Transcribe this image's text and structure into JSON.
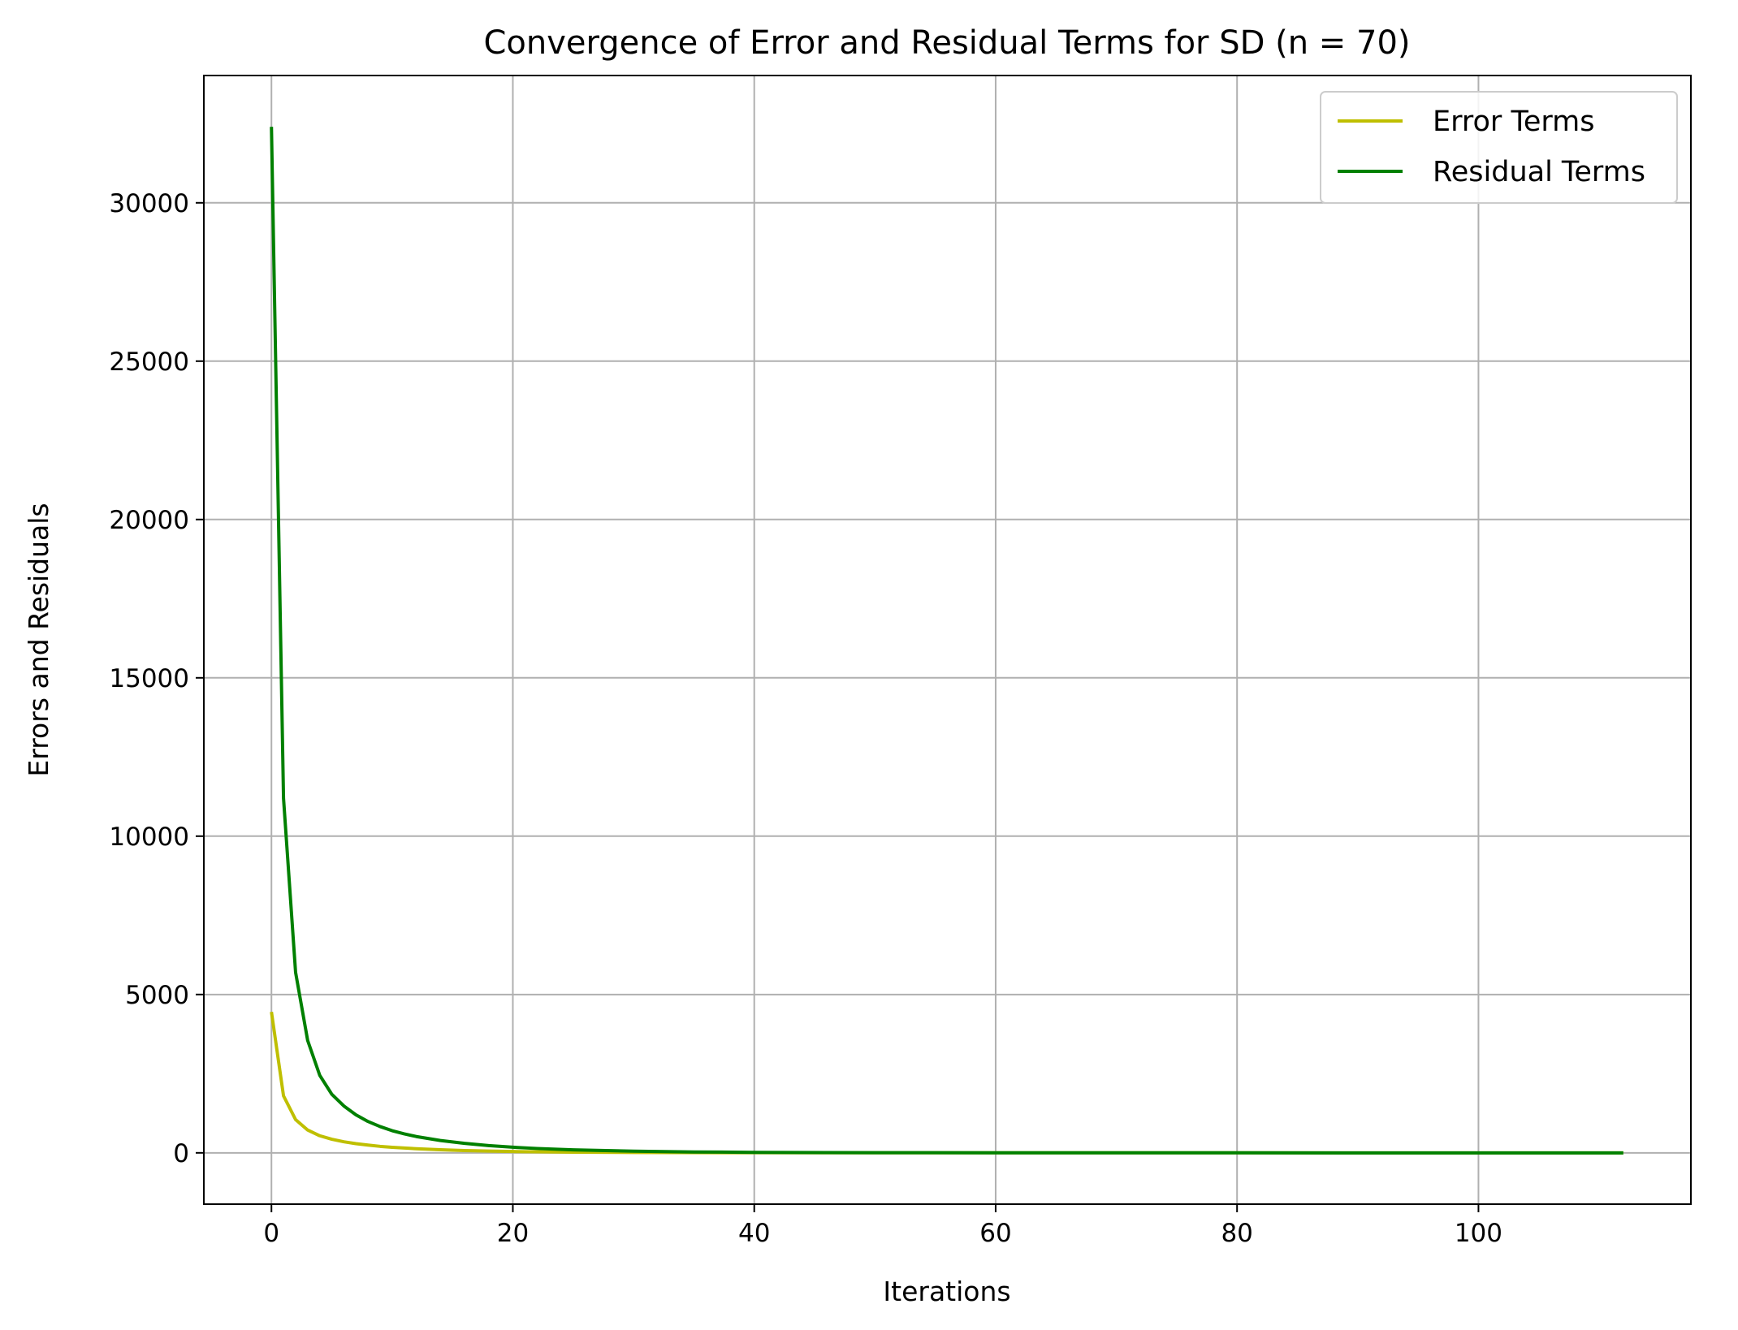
{
  "chart_data": {
    "type": "line",
    "title": "Convergence of Error and Residual Terms for SD (n = 70)",
    "xlabel": "Iterations",
    "ylabel": "Errors and Residuals",
    "xlim": [
      -5.6,
      117.6
    ],
    "ylim": [
      -1620,
      34020
    ],
    "xticks": [
      0,
      20,
      40,
      60,
      80,
      100
    ],
    "xtick_labels": [
      "0",
      "20",
      "40",
      "60",
      "80",
      "100"
    ],
    "yticks": [
      0,
      5000,
      10000,
      15000,
      20000,
      25000,
      30000
    ],
    "ytick_labels": [
      "0",
      "5000",
      "10000",
      "15000",
      "20000",
      "25000",
      "30000"
    ],
    "grid": true,
    "legend_position": "top-right",
    "series": [
      {
        "name": "Error Terms",
        "color": "#bfbf00",
        "x": [
          0,
          1,
          2,
          3,
          4,
          5,
          6,
          7,
          8,
          9,
          10,
          12,
          14,
          16,
          18,
          20,
          25,
          30,
          40,
          50,
          60,
          80,
          100,
          112
        ],
        "values": [
          4450,
          1800,
          1050,
          720,
          540,
          430,
          350,
          290,
          245,
          205,
          175,
          130,
          97,
          73,
          55,
          42,
          22,
          12,
          4,
          1.5,
          0.5,
          0.1,
          0.02,
          0.01
        ]
      },
      {
        "name": "Residual Terms",
        "color": "#008000",
        "x": [
          0,
          1,
          2,
          3,
          4,
          5,
          6,
          7,
          8,
          9,
          10,
          11,
          12,
          14,
          16,
          18,
          20,
          22,
          25,
          30,
          35,
          40,
          50,
          60,
          80,
          100,
          112
        ],
        "values": [
          32400,
          11200,
          5700,
          3550,
          2450,
          1850,
          1480,
          1200,
          990,
          830,
          700,
          600,
          515,
          390,
          300,
          230,
          178,
          138,
          95,
          52,
          29,
          16,
          5,
          1.6,
          0.2,
          0.03,
          0.01
        ]
      }
    ]
  }
}
